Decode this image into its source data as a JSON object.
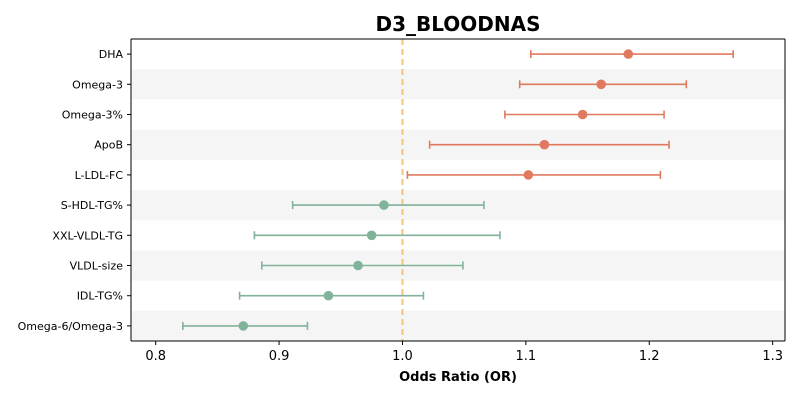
{
  "chart_data": {
    "type": "forest",
    "title": "D3_BLOODNAS",
    "xlabel": "Odds Ratio (OR)",
    "ylabel": "",
    "xlim": [
      0.78,
      1.31
    ],
    "x_ticks": [
      0.8,
      0.9,
      1.0,
      1.1,
      1.2,
      1.3
    ],
    "x_tick_labels": [
      "0.8",
      "0.9",
      "1.0",
      "1.1",
      "1.2",
      "1.3"
    ],
    "reference_line": 1.0,
    "row_banding": true,
    "grid": false,
    "colors": {
      "positive": "#e07a5f",
      "negative": "#81b29a",
      "reference": "#f2c57c",
      "band": "#f5f5f5"
    },
    "rows": [
      {
        "label": "DHA",
        "or": 1.183,
        "lower": 1.104,
        "upper": 1.268,
        "direction": "positive"
      },
      {
        "label": "Omega-3",
        "or": 1.161,
        "lower": 1.095,
        "upper": 1.23,
        "direction": "positive"
      },
      {
        "label": "Omega-3%",
        "or": 1.146,
        "lower": 1.083,
        "upper": 1.212,
        "direction": "positive"
      },
      {
        "label": "ApoB",
        "or": 1.115,
        "lower": 1.022,
        "upper": 1.216,
        "direction": "positive"
      },
      {
        "label": "L-LDL-FC",
        "or": 1.102,
        "lower": 1.004,
        "upper": 1.209,
        "direction": "positive"
      },
      {
        "label": "S-HDL-TG%",
        "or": 0.985,
        "lower": 0.911,
        "upper": 1.066,
        "direction": "negative"
      },
      {
        "label": "XXL-VLDL-TG",
        "or": 0.975,
        "lower": 0.88,
        "upper": 1.079,
        "direction": "negative"
      },
      {
        "label": "VLDL-size",
        "or": 0.964,
        "lower": 0.886,
        "upper": 1.049,
        "direction": "negative"
      },
      {
        "label": "IDL-TG%",
        "or": 0.94,
        "lower": 0.868,
        "upper": 1.017,
        "direction": "negative"
      },
      {
        "label": "Omega-6/Omega-3",
        "or": 0.871,
        "lower": 0.822,
        "upper": 0.923,
        "direction": "negative"
      }
    ]
  }
}
